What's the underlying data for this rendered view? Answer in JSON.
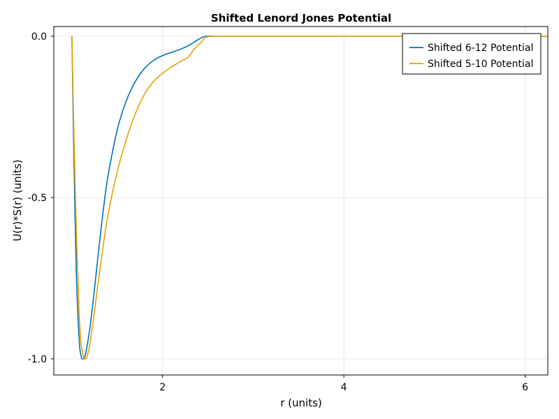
{
  "chart_data": {
    "type": "line",
    "title": "Shifted Lenord Jones Potential",
    "xlabel": "r (units)",
    "ylabel": "U(r)*S(r)  (units)",
    "xlim": [
      0.8,
      6.25
    ],
    "ylim": [
      -1.05,
      0.03
    ],
    "xticks": [
      2,
      4,
      6
    ],
    "xtick_labels": [
      "2",
      "4",
      "6"
    ],
    "yticks": [
      0.0,
      -0.5,
      -1.0
    ],
    "ytick_labels": [
      "0.0",
      "-0.5",
      "-1.0"
    ],
    "grid": true,
    "legend_position": "top-right",
    "series": [
      {
        "name": "Shifted 6-12 Potential",
        "color": "#0072b2",
        "x": [
          1.0,
          1.02,
          1.05,
          1.08,
          1.1,
          1.12,
          1.15,
          1.2,
          1.25,
          1.3,
          1.35,
          1.4,
          1.5,
          1.6,
          1.7,
          1.8,
          1.9,
          2.0,
          2.1,
          2.2,
          2.28,
          2.35,
          2.42,
          2.48,
          2.6,
          3.0,
          4.0,
          5.0,
          6.25
        ],
        "y": [
          0.0,
          -0.35,
          -0.75,
          -0.94,
          -0.99,
          -1.0,
          -0.985,
          -0.9,
          -0.78,
          -0.65,
          -0.53,
          -0.43,
          -0.29,
          -0.2,
          -0.14,
          -0.1,
          -0.075,
          -0.06,
          -0.05,
          -0.04,
          -0.03,
          -0.018,
          -0.006,
          0.0,
          0.0,
          0.0,
          0.0,
          0.0,
          0.0
        ]
      },
      {
        "name": "Shifted 5-10 Potential",
        "color": "#e69f00",
        "x": [
          1.0,
          1.02,
          1.05,
          1.08,
          1.1,
          1.13,
          1.15,
          1.17,
          1.2,
          1.25,
          1.3,
          1.35,
          1.4,
          1.5,
          1.6,
          1.7,
          1.8,
          1.9,
          2.0,
          2.1,
          2.2,
          2.28,
          2.35,
          2.42,
          2.48,
          2.6,
          3.0,
          4.0,
          5.0,
          6.25
        ],
        "y": [
          0.0,
          -0.28,
          -0.62,
          -0.86,
          -0.95,
          -0.995,
          -1.0,
          -0.99,
          -0.95,
          -0.85,
          -0.74,
          -0.64,
          -0.55,
          -0.42,
          -0.32,
          -0.24,
          -0.18,
          -0.14,
          -0.115,
          -0.095,
          -0.078,
          -0.065,
          -0.04,
          -0.02,
          -0.003,
          0.0,
          0.0,
          0.0,
          0.0,
          0.0
        ]
      }
    ]
  }
}
